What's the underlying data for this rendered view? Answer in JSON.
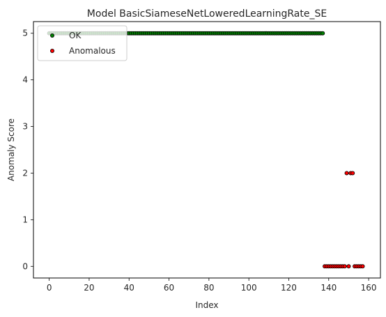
{
  "chart_data": {
    "type": "scatter",
    "title": "Model BasicSiameseNetLoweredLearningRate_SE",
    "xlabel": "Index",
    "ylabel": "Anomaly Score",
    "xlim": [
      -7.9,
      165.9
    ],
    "ylim": [
      -0.25,
      5.25
    ],
    "x_ticks": [
      0,
      20,
      40,
      60,
      80,
      100,
      120,
      140,
      160
    ],
    "y_ticks": [
      0,
      1,
      2,
      3,
      4,
      5
    ],
    "grid": false,
    "legend_position": "top-left",
    "colors": {
      "ok": "#008000",
      "anomalous": "#ff0000",
      "edge": "#000000"
    },
    "series": [
      {
        "name": "OK",
        "color": "#008000",
        "x": [
          0,
          1,
          2,
          3,
          4,
          5,
          6,
          7,
          8,
          9,
          10,
          11,
          12,
          13,
          14,
          15,
          16,
          17,
          18,
          19,
          20,
          21,
          22,
          23,
          24,
          25,
          26,
          27,
          28,
          29,
          30,
          31,
          32,
          33,
          34,
          35,
          36,
          37,
          38,
          39,
          40,
          41,
          42,
          43,
          44,
          45,
          46,
          47,
          48,
          49,
          50,
          51,
          52,
          53,
          54,
          55,
          56,
          57,
          58,
          59,
          60,
          61,
          62,
          63,
          64,
          65,
          66,
          67,
          68,
          69,
          70,
          71,
          72,
          73,
          74,
          75,
          76,
          77,
          78,
          79,
          80,
          81,
          82,
          83,
          84,
          85,
          86,
          87,
          88,
          89,
          90,
          91,
          92,
          93,
          94,
          95,
          96,
          97,
          98,
          99,
          100,
          101,
          102,
          103,
          104,
          105,
          106,
          107,
          108,
          109,
          110,
          111,
          112,
          113,
          114,
          115,
          116,
          117,
          118,
          119,
          120,
          121,
          122,
          123,
          124,
          125,
          126,
          127,
          128,
          129,
          130,
          131,
          132,
          133,
          134,
          135,
          136,
          137
        ],
        "y": [
          5,
          5,
          5,
          5,
          5,
          5,
          5,
          5,
          5,
          5,
          5,
          5,
          5,
          5,
          5,
          5,
          5,
          5,
          5,
          5,
          5,
          5,
          5,
          5,
          5,
          5,
          5,
          5,
          5,
          5,
          5,
          5,
          5,
          5,
          5,
          5,
          5,
          5,
          5,
          5,
          5,
          5,
          5,
          5,
          5,
          5,
          5,
          5,
          5,
          5,
          5,
          5,
          5,
          5,
          5,
          5,
          5,
          5,
          5,
          5,
          5,
          5,
          5,
          5,
          5,
          5,
          5,
          5,
          5,
          5,
          5,
          5,
          5,
          5,
          5,
          5,
          5,
          5,
          5,
          5,
          5,
          5,
          5,
          5,
          5,
          5,
          5,
          5,
          5,
          5,
          5,
          5,
          5,
          5,
          5,
          5,
          5,
          5,
          5,
          5,
          5,
          5,
          5,
          5,
          5,
          5,
          5,
          5,
          5,
          5,
          5,
          5,
          5,
          5,
          5,
          5,
          5,
          5,
          5,
          5,
          5,
          5,
          5,
          5,
          5,
          5,
          5,
          5,
          5,
          5,
          5,
          5,
          5,
          5,
          5,
          5,
          5,
          5
        ]
      },
      {
        "name": "Anomalous",
        "color": "#ff0000",
        "x": [
          138,
          139,
          140,
          141,
          142,
          143,
          144,
          145,
          146,
          147,
          148,
          149,
          150,
          151,
          152,
          153,
          154,
          155,
          156,
          157
        ],
        "y": [
          0,
          0,
          0,
          0,
          0,
          0,
          0,
          0,
          0,
          0,
          0,
          2,
          0,
          2,
          2,
          0,
          0,
          0,
          0,
          0
        ]
      }
    ]
  }
}
